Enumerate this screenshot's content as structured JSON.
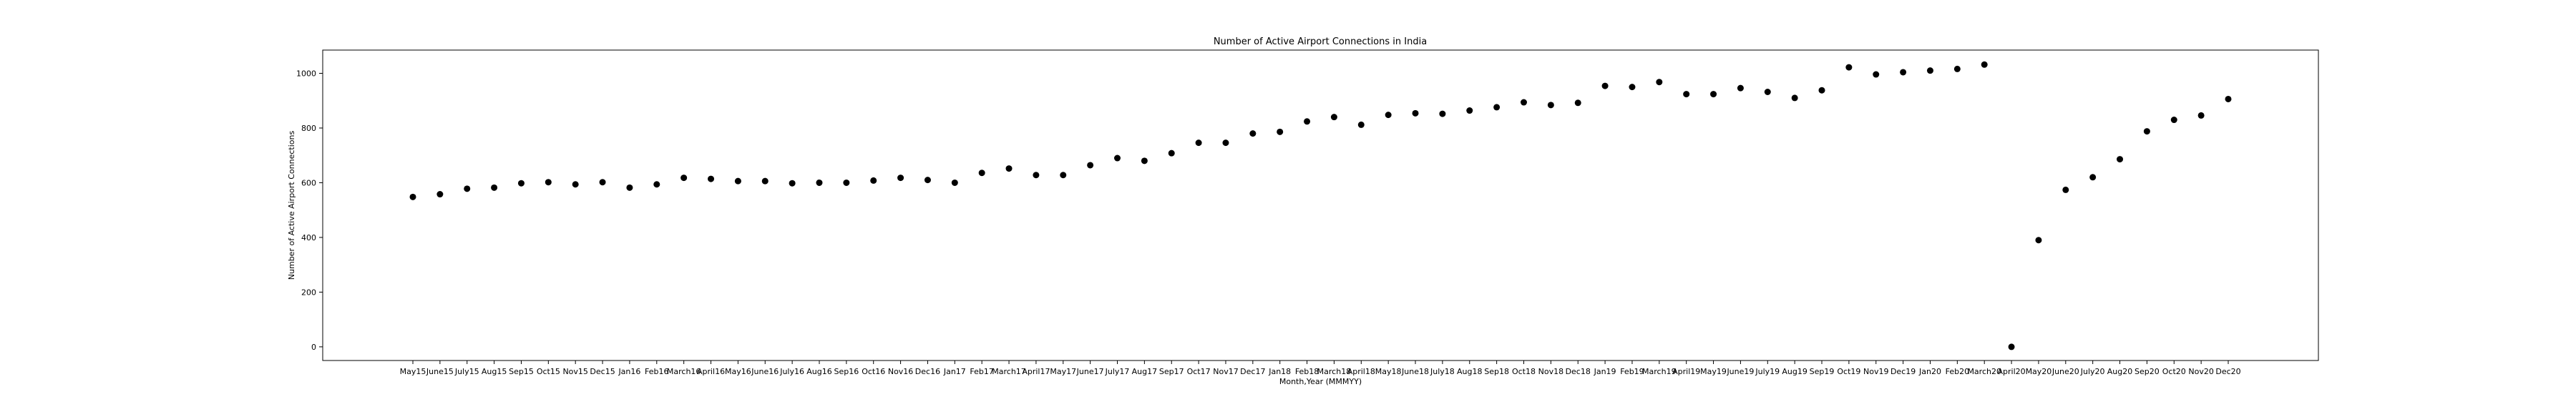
{
  "chart_data": {
    "type": "scatter",
    "title": "Number of Active Airport Connections in India",
    "xlabel": "Month,Year (MMMYY)",
    "ylabel": "Number of Active Airport Connections",
    "ylim": [
      -50,
      1085
    ],
    "yticks": [
      0,
      200,
      400,
      600,
      800,
      1000
    ],
    "grid": false,
    "marker_color": "#000000",
    "categories": [
      "May15",
      "June15",
      "July15",
      "Aug15",
      "Sep15",
      "Oct15",
      "Nov15",
      "Dec15",
      "Jan16",
      "Feb16",
      "March16",
      "April16",
      "May16",
      "June16",
      "July16",
      "Aug16",
      "Sep16",
      "Oct16",
      "Nov16",
      "Dec16",
      "Jan17",
      "Feb17",
      "March17",
      "April17",
      "May17",
      "June17",
      "July17",
      "Aug17",
      "Sep17",
      "Oct17",
      "Nov17",
      "Dec17",
      "Jan18",
      "Feb18",
      "March18",
      "April18",
      "May18",
      "June18",
      "July18",
      "Aug18",
      "Sep18",
      "Oct18",
      "Nov18",
      "Dec18",
      "Jan19",
      "Feb19",
      "March19",
      "April19",
      "May19",
      "June19",
      "July19",
      "Aug19",
      "Sep19",
      "Oct19",
      "Nov19",
      "Dec19",
      "Jan20",
      "Feb20",
      "March20",
      "April20",
      "May20",
      "June20",
      "July20",
      "Aug20",
      "Sep20",
      "Oct20",
      "Nov20",
      "Dec20"
    ],
    "values": [
      548,
      558,
      578,
      582,
      598,
      602,
      594,
      602,
      582,
      594,
      618,
      614,
      606,
      606,
      598,
      600,
      600,
      608,
      618,
      610,
      600,
      636,
      652,
      628,
      628,
      664,
      690,
      680,
      708,
      746,
      746,
      780,
      786,
      824,
      840,
      812,
      848,
      854,
      852,
      864,
      876,
      894,
      884,
      892,
      954,
      950,
      968,
      924,
      924,
      946,
      932,
      910,
      938,
      1022,
      996,
      1004,
      1010,
      1016,
      1032,
      0,
      390,
      574,
      620,
      686,
      788,
      830,
      846,
      906
    ]
  }
}
